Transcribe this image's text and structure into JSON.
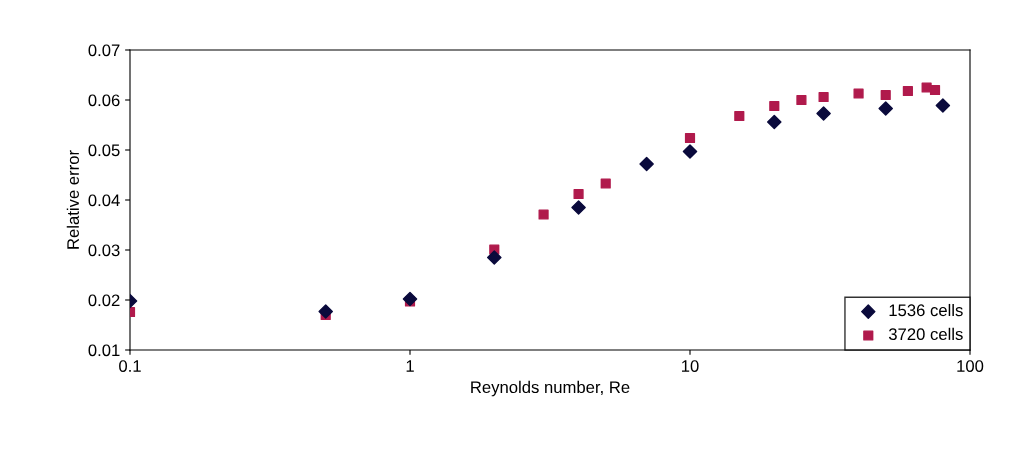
{
  "chart_data": {
    "type": "scatter",
    "xlabel": "Reynolds number, Re",
    "ylabel": "Relative error",
    "log": "x",
    "xlim": [
      0.1,
      100
    ],
    "xticks": [
      0.1,
      1,
      10,
      100
    ],
    "ylim": [
      0.01,
      0.07
    ],
    "yticks": [
      0.01,
      0.02,
      0.03,
      0.04,
      0.05,
      0.06,
      0.07
    ],
    "grid": false,
    "legend": "bottom right",
    "series": [
      {
        "name": "1536 cells",
        "color": "#0a0a3c",
        "marker": "diamond",
        "x": [
          0.1,
          0.5,
          1,
          2,
          4,
          7,
          10,
          20,
          30,
          50,
          80
        ],
        "values": [
          0.0198,
          0.0177,
          0.0202,
          0.0285,
          0.0385,
          0.0472,
          0.0497,
          0.0556,
          0.0573,
          0.0583,
          0.0589
        ]
      },
      {
        "name": "3720 cells",
        "color": "#b01a4c",
        "marker": "square",
        "x": [
          0.1,
          0.5,
          1,
          2,
          3,
          4,
          5,
          10,
          15,
          20,
          25,
          30,
          40,
          50,
          60,
          70,
          75
        ],
        "values": [
          0.0176,
          0.017,
          0.0197,
          0.0301,
          0.0371,
          0.0412,
          0.0433,
          0.0524,
          0.0568,
          0.0588,
          0.06,
          0.0606,
          0.0613,
          0.061,
          0.0618,
          0.0625,
          0.062
        ]
      }
    ]
  }
}
